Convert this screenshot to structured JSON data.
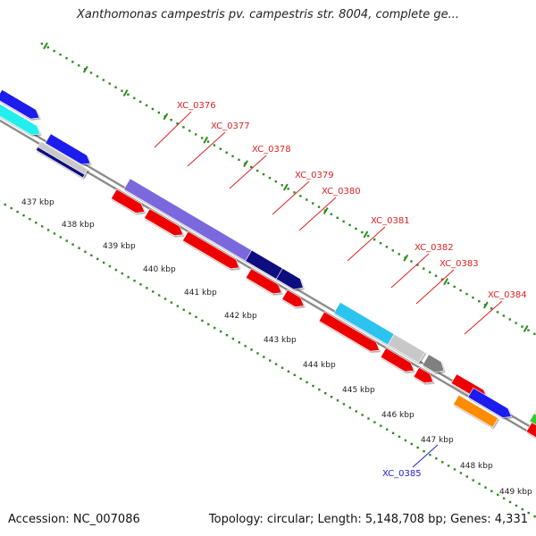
{
  "title": "Xanthomonas campestris pv. campestris str. 8004, complete ge...",
  "footer": {
    "accession": "Accession: NC_007086",
    "summary": "Topology: circular; Length: 5,148,708 bp; Genes: 4,331"
  },
  "colors": {
    "backbone": "#8c8c8c",
    "tick_dots": "#2e8b1e",
    "forward_label": "#dd2222",
    "reverse_label": "#2222cc"
  },
  "scale_ticks": [
    "437 kbp",
    "438 kbp",
    "439 kbp",
    "440 kbp",
    "441 kbp",
    "442 kbp",
    "443 kbp",
    "444 kbp",
    "445 kbp",
    "446 kbp",
    "447 kbp",
    "448 kbp",
    "449 kbp"
  ],
  "gene_labels": [
    {
      "name": "XC_0376",
      "strand": "forward"
    },
    {
      "name": "XC_0377",
      "strand": "forward"
    },
    {
      "name": "XC_0378",
      "strand": "forward"
    },
    {
      "name": "XC_0379",
      "strand": "forward"
    },
    {
      "name": "XC_0380",
      "strand": "forward"
    },
    {
      "name": "XC_0381",
      "strand": "forward"
    },
    {
      "name": "XC_0382",
      "strand": "forward"
    },
    {
      "name": "XC_0383",
      "strand": "forward"
    },
    {
      "name": "XC_0384",
      "strand": "forward"
    },
    {
      "name": "XC_0385",
      "strand": "reverse"
    }
  ],
  "feature_colors": {
    "cds": "#ee0000",
    "cog_blue": "#1a1aee",
    "cog_slate": "#7b68dd",
    "cog_navy": "#0d0d80",
    "cog_cyan": "#29c4ee",
    "cog_aqua": "#22eeee",
    "cog_silver": "#c8c8c8",
    "cog_gray": "#808080",
    "cog_orange": "#ff8c00",
    "cog_green": "#33cc33",
    "cog_khaki": "#eee8aa"
  }
}
